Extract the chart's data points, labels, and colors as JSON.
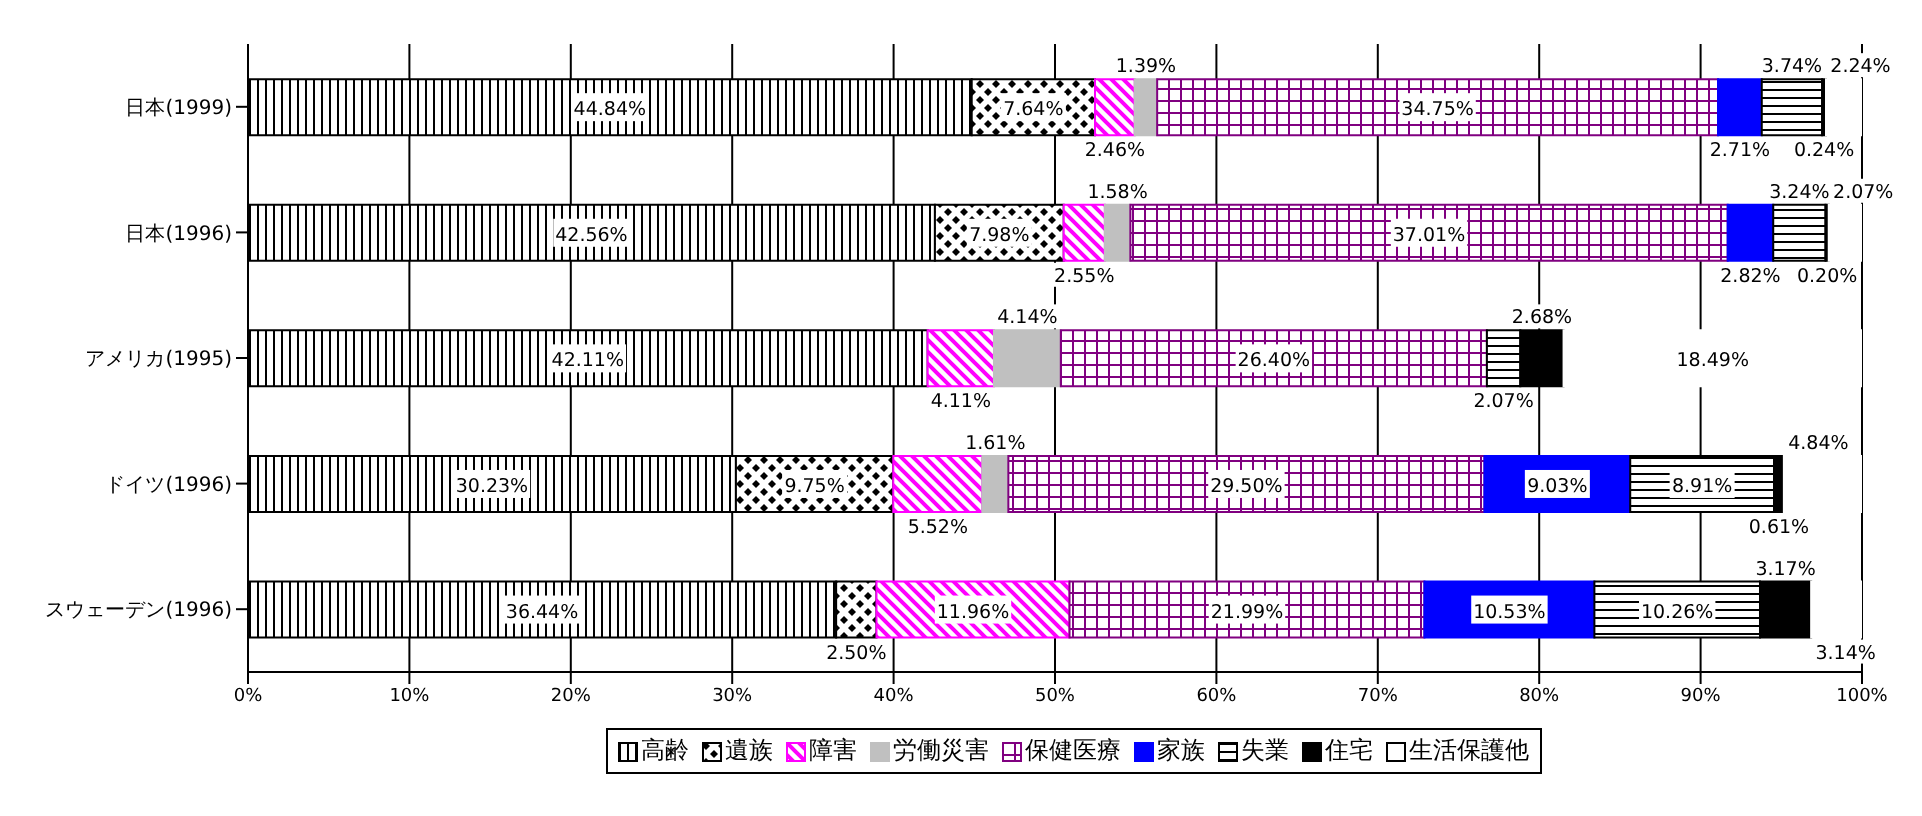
{
  "chart_data": {
    "type": "bar",
    "orientation": "horizontal",
    "stacked": true,
    "categories": [
      "日本(1999)",
      "日本(1996)",
      "アメリカ(1995)",
      "ドイツ(1996)",
      "スウェーデン(1996)"
    ],
    "series": [
      {
        "name": "高齢",
        "color": "#000000",
        "values": [
          44.84,
          42.56,
          42.11,
          30.23,
          36.44
        ],
        "value_labels": [
          "44.84%",
          "42.56%",
          "42.11%",
          "30.23%",
          "36.44%"
        ]
      },
      {
        "name": "遺族",
        "color": "#000000",
        "values": [
          7.64,
          7.98,
          null,
          9.75,
          2.5
        ],
        "value_labels": [
          "7.64%",
          "7.98%",
          null,
          "9.75%",
          "2.50%"
        ]
      },
      {
        "name": "障害",
        "color": "#ff00ff",
        "values": [
          2.46,
          2.55,
          4.11,
          5.52,
          11.96
        ],
        "value_labels": [
          "2.46%",
          "2.55%",
          "4.11%",
          "5.52%",
          "11.96%"
        ]
      },
      {
        "name": "労働災害",
        "color": "#c0c0c0",
        "values": [
          1.39,
          1.58,
          4.14,
          1.61,
          null
        ],
        "value_labels": [
          "1.39%",
          "1.58%",
          "4.14%",
          "1.61%",
          null
        ]
      },
      {
        "name": "保健医療",
        "color": "#800080",
        "values": [
          34.75,
          37.01,
          26.4,
          29.5,
          21.99
        ],
        "value_labels": [
          "34.75%",
          "37.01%",
          "26.40%",
          "29.50%",
          "21.99%"
        ]
      },
      {
        "name": "家族",
        "color": "#0000ff",
        "values": [
          2.71,
          2.82,
          null,
          9.03,
          10.53
        ],
        "value_labels": [
          "2.71%",
          "2.82%",
          null,
          "9.03%",
          "10.53%"
        ]
      },
      {
        "name": "失業",
        "color": "#000000",
        "values": [
          3.74,
          3.24,
          2.07,
          8.91,
          10.26
        ],
        "value_labels": [
          "3.74%",
          "3.24%",
          "2.07%",
          "8.91%",
          "10.26%"
        ]
      },
      {
        "name": "住宅",
        "color": "#000000",
        "values": [
          0.24,
          0.2,
          2.68,
          0.61,
          3.17
        ],
        "value_labels": [
          "0.24%",
          "0.20%",
          "2.68%",
          "0.61%",
          "3.17%"
        ]
      },
      {
        "name": "生活保護他",
        "color": "#ffffff",
        "values": [
          2.24,
          2.07,
          18.49,
          4.84,
          3.14
        ],
        "value_labels": [
          "2.24%",
          "2.07%",
          "18.49%",
          "4.84%",
          "3.14%"
        ]
      }
    ],
    "xlim": [
      0,
      100
    ],
    "xticks": [
      {
        "value": 0,
        "label": "0%"
      },
      {
        "value": 10,
        "label": "10%"
      },
      {
        "value": 20,
        "label": "20%"
      },
      {
        "value": 30,
        "label": "30%"
      },
      {
        "value": 40,
        "label": "40%"
      },
      {
        "value": 50,
        "label": "50%"
      },
      {
        "value": 60,
        "label": "60%"
      },
      {
        "value": 70,
        "label": "70%"
      },
      {
        "value": 80,
        "label": "80%"
      },
      {
        "value": 90,
        "label": "90%"
      },
      {
        "value": 100,
        "label": "100%"
      }
    ],
    "grid": "x",
    "legend": "bottom"
  }
}
